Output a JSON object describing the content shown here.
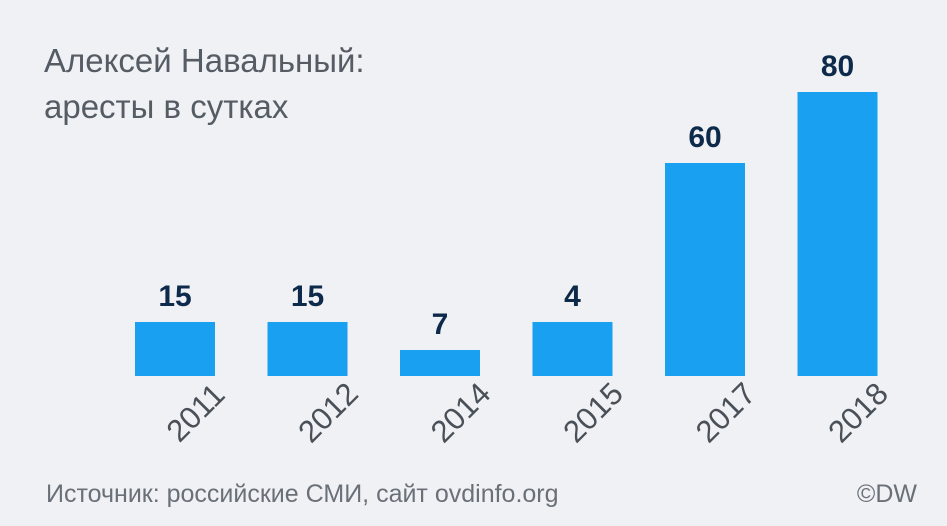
{
  "chart_data": {
    "type": "bar",
    "title": "Алексей Навальный:",
    "subtitle": "аресты в сутках",
    "categories": [
      "2011",
      "2012",
      "2014",
      "2015",
      "2017",
      "2018"
    ],
    "values": [
      15,
      15,
      7,
      4,
      60,
      80
    ],
    "xlabel": "",
    "ylabel": "",
    "ylim": [
      0,
      80
    ],
    "grid": false,
    "bar_color": "#1aa0f0",
    "label_color": "#0d2a4a"
  },
  "footer": {
    "source": "Источник: российские СМИ, сайт ovdinfo.org",
    "credit": "©DW"
  }
}
